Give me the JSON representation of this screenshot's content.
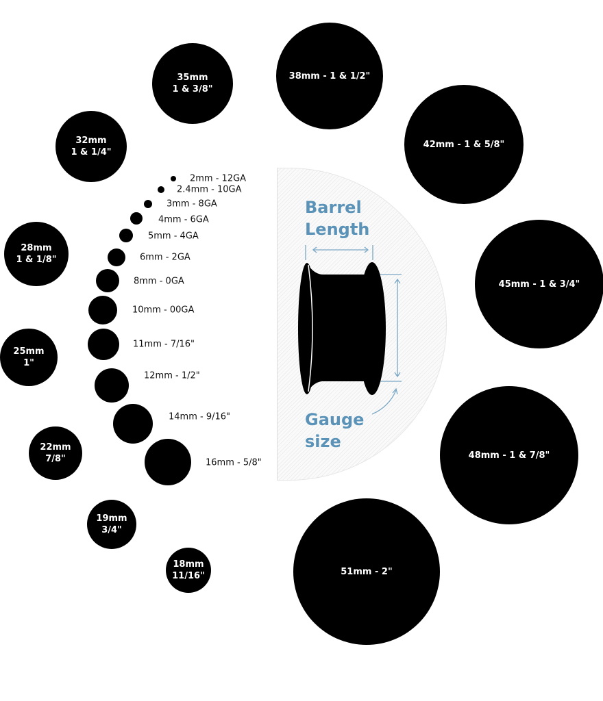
{
  "large_sizes": [
    {
      "line1": "35mm",
      "line2": "1 & 3/8\""
    },
    {
      "line1": "38mm - 1 & 1/2\"",
      "line2": ""
    },
    {
      "line1": "32mm",
      "line2": "1 & 1/4\""
    },
    {
      "line1": "42mm - 1 & 5/8\"",
      "line2": ""
    },
    {
      "line1": "28mm",
      "line2": "1 & 1/8\""
    },
    {
      "line1": "45mm - 1 & 3/4\"",
      "line2": ""
    },
    {
      "line1": "25mm",
      "line2": "1\""
    },
    {
      "line1": "48mm - 1 & 7/8\"",
      "line2": ""
    },
    {
      "line1": "22mm",
      "line2": "7/8\""
    },
    {
      "line1": "19mm",
      "line2": "3/4\""
    },
    {
      "line1": "18mm",
      "line2": "11/16\""
    },
    {
      "line1": "51mm - 2\"",
      "line2": ""
    }
  ],
  "small_sizes": [
    "2mm - 12GA",
    "2.4mm - 10GA",
    "3mm - 8GA",
    "4mm - 6GA",
    "5mm - 4GA",
    "6mm - 2GA",
    "8mm - 0GA",
    "10mm - 00GA",
    "11mm - 7/16\"",
    "12mm - 1/2\"",
    "14mm - 9/16\"",
    "16mm - 5/8\""
  ],
  "diagram": {
    "barrel_label_1": "Barrel",
    "barrel_label_2": "Length",
    "gauge_label_1": "Gauge",
    "gauge_label_2": "size",
    "accent_color": "#5b93b8"
  }
}
